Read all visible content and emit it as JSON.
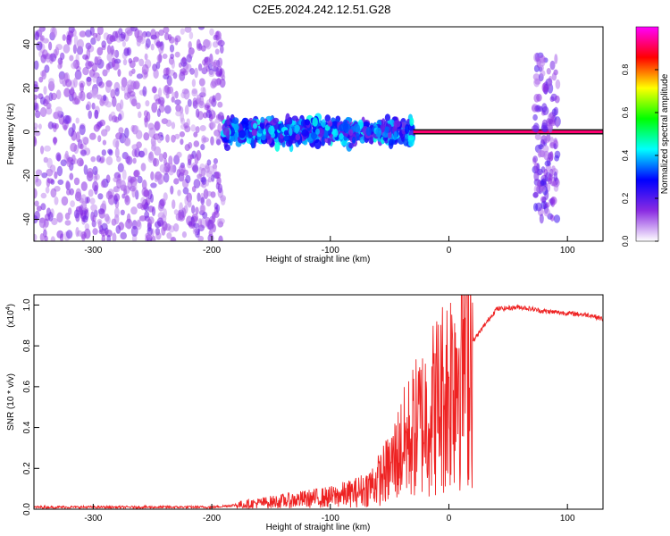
{
  "figure": {
    "title": "C2E5.2024.242.12.51.G28"
  },
  "colorbar": {
    "label": "Normalized spectral amplitude",
    "ticks": [
      "0.0",
      "0.2",
      "0.4",
      "0.6",
      "0.8"
    ],
    "colors": [
      "#ffffff",
      "#8a2be2",
      "#0000ff",
      "#00ffff",
      "#00ff00",
      "#ffff00",
      "#ff0000",
      "#ff00ff"
    ]
  },
  "chart_data": [
    {
      "type": "heatmap",
      "xlabel": "Height of straight line (km)",
      "ylabel": "Frequency (Hz)",
      "xlim": [
        -350,
        130
      ],
      "ylim": [
        -50,
        48
      ],
      "xticks": [
        -300,
        -200,
        -100,
        0,
        100
      ],
      "xtick_labels": [
        "-300",
        "-200",
        "-100",
        "0",
        "100"
      ],
      "yticks": [
        -40,
        -20,
        0,
        20,
        40
      ],
      "ytick_labels": [
        "-40",
        "-20",
        "0",
        "20",
        "40"
      ],
      "value_range": [
        0,
        1
      ],
      "regions": [
        {
          "x": [
            -350,
            -190
          ],
          "freq_spread": [
            -50,
            48
          ],
          "amplitude": 0.12
        },
        {
          "x": [
            -190,
            -30
          ],
          "freq_center": 0,
          "freq_spread": [
            -8,
            8
          ],
          "amplitude": 0.3
        },
        {
          "x": [
            -30,
            130
          ],
          "freq_center": 0,
          "freq_spread": [
            -1,
            1
          ],
          "amplitude": 0.9
        },
        {
          "x": [
            72,
            92
          ],
          "freq_spread": [
            -40,
            35
          ],
          "amplitude": 0.15
        }
      ]
    },
    {
      "type": "line",
      "xlabel": "Height of straight line (km)",
      "ylabel": "SNR (10 * v/v)",
      "y_scale_label": "(x10",
      "y_scale_exponent": "4",
      "xlim": [
        -350,
        130
      ],
      "ylim": [
        0,
        1.05
      ],
      "xticks": [
        -300,
        -200,
        -100,
        0,
        100
      ],
      "xtick_labels": [
        "-300",
        "-200",
        "-100",
        "0",
        "100"
      ],
      "yticks": [
        0,
        0.2,
        0.4,
        0.6,
        0.8,
        1.0
      ],
      "ytick_labels": [
        "0.0",
        "0.2",
        "0.4",
        "0.6",
        "0.8",
        "1.0"
      ],
      "series": [
        {
          "color": "#ee2222",
          "x": [
            -350,
            -300,
            -250,
            -200,
            -180,
            -160,
            -140,
            -120,
            -100,
            -80,
            -70,
            -60,
            -50,
            -40,
            -30,
            -20,
            -10,
            0,
            5,
            10,
            20,
            30,
            40,
            60,
            80,
            100,
            120,
            130
          ],
          "y": [
            0.01,
            0.01,
            0.01,
            0.01,
            0.02,
            0.03,
            0.04,
            0.05,
            0.06,
            0.08,
            0.1,
            0.14,
            0.2,
            0.3,
            0.38,
            0.45,
            0.52,
            0.6,
            0.7,
            0.78,
            0.82,
            0.9,
            0.98,
            0.99,
            0.97,
            0.96,
            0.95,
            0.93
          ]
        }
      ]
    }
  ]
}
